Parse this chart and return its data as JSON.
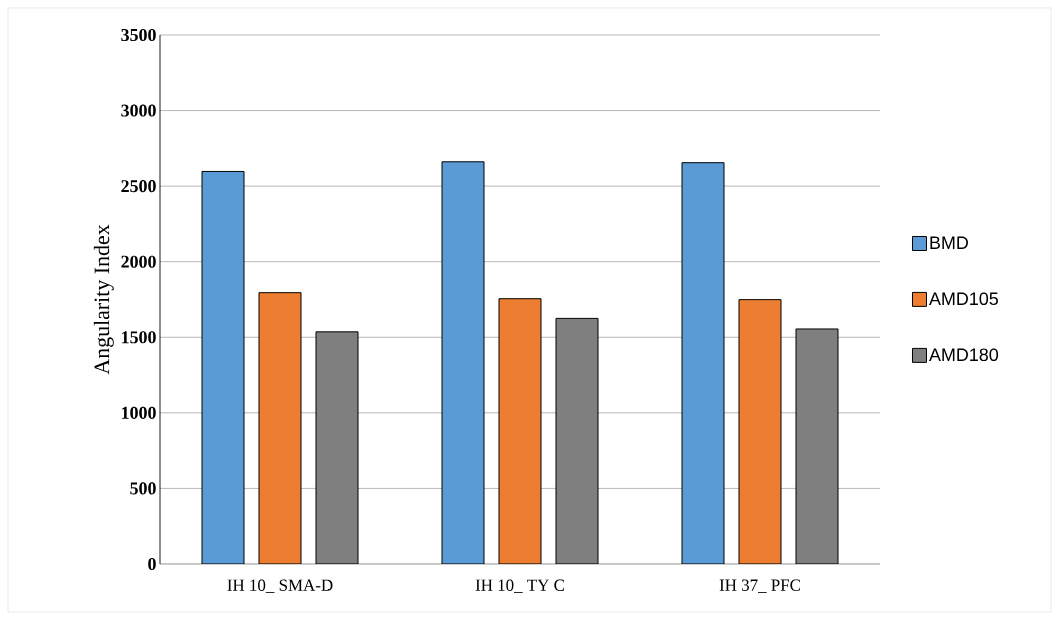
{
  "chart_data": {
    "type": "bar",
    "ylabel": "Angularity Index",
    "categories": [
      "IH 10_ SMA-D",
      "IH 10_ TY C",
      "IH 37_ PFC"
    ],
    "series": [
      {
        "name": "BMD",
        "color": "#5b9bd5",
        "values": [
          2597,
          2661,
          2655
        ]
      },
      {
        "name": "AMD105",
        "color": "#ed7d31",
        "values": [
          1795,
          1755,
          1749
        ]
      },
      {
        "name": "AMD180",
        "color": "#7f7f7f",
        "values": [
          1536,
          1625,
          1555
        ]
      }
    ],
    "ylim": [
      0,
      3500
    ],
    "yticks": [
      0,
      500,
      1000,
      1500,
      2000,
      2500,
      3000,
      3500
    ],
    "grid": "y",
    "legend": "right"
  }
}
